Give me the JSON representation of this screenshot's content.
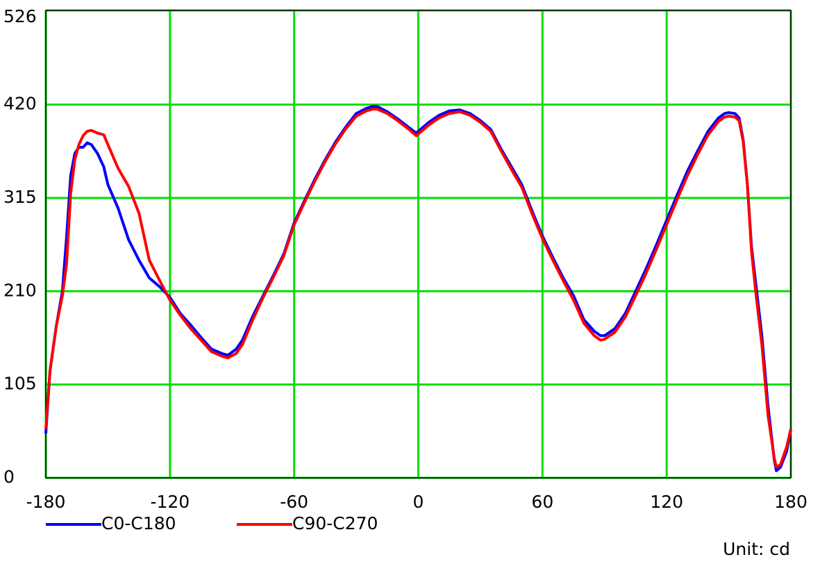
{
  "chart_data": {
    "type": "line",
    "annotation": "Unit: cd",
    "xlim": [
      -180,
      180
    ],
    "xticks": [
      -180,
      -120,
      -60,
      0,
      60,
      120,
      180
    ],
    "ylim": [
      0,
      526
    ],
    "yticks": [
      0,
      105,
      210,
      315,
      420,
      526
    ],
    "grid": true,
    "grid_color": "#00e000",
    "legend": "bottom-left",
    "x": [
      -180,
      -178,
      -175,
      -172,
      -170,
      -168,
      -166,
      -164,
      -162,
      -160,
      -158,
      -155,
      -152,
      -150,
      -145,
      -140,
      -135,
      -130,
      -125,
      -120,
      -115,
      -110,
      -105,
      -100,
      -95,
      -92,
      -88,
      -85,
      -80,
      -75,
      -70,
      -65,
      -60,
      -55,
      -50,
      -45,
      -40,
      -35,
      -30,
      -25,
      -22,
      -20,
      -15,
      -10,
      -5,
      -1,
      0,
      5,
      10,
      15,
      20,
      25,
      30,
      35,
      40,
      45,
      50,
      55,
      60,
      65,
      70,
      75,
      80,
      85,
      88,
      90,
      95,
      100,
      105,
      110,
      115,
      120,
      125,
      130,
      135,
      140,
      145,
      148,
      150,
      153,
      155,
      157,
      159,
      161,
      163,
      166,
      169,
      172,
      173,
      175,
      178,
      180
    ],
    "series": [
      {
        "name": "C0-C180",
        "color": "#0000ff",
        "values": [
          50,
          120,
          170,
          210,
          270,
          340,
          365,
          372,
          372,
          377,
          375,
          365,
          350,
          330,
          303,
          268,
          245,
          225,
          215,
          203,
          185,
          172,
          158,
          145,
          140,
          138,
          145,
          155,
          182,
          205,
          228,
          252,
          287,
          312,
          336,
          358,
          378,
          395,
          410,
          416,
          418,
          418,
          412,
          404,
          395,
          388,
          390,
          400,
          408,
          413,
          414,
          410,
          402,
          392,
          370,
          350,
          330,
          300,
          272,
          248,
          225,
          205,
          178,
          165,
          160,
          160,
          168,
          185,
          210,
          235,
          262,
          290,
          318,
          345,
          368,
          390,
          405,
          410,
          411,
          410,
          405,
          380,
          330,
          260,
          220,
          160,
          80,
          20,
          8,
          12,
          30,
          55
        ]
      },
      {
        "name": "C90-C270",
        "color": "#ff0000",
        "values": [
          55,
          120,
          170,
          205,
          240,
          320,
          358,
          375,
          385,
          390,
          391,
          388,
          386,
          375,
          348,
          328,
          298,
          245,
          222,
          200,
          183,
          168,
          155,
          142,
          137,
          135,
          140,
          150,
          178,
          203,
          226,
          250,
          285,
          310,
          334,
          356,
          376,
          393,
          407,
          413,
          415,
          415,
          410,
          402,
          393,
          385,
          387,
          397,
          405,
          410,
          412,
          408,
          400,
          390,
          368,
          347,
          327,
          297,
          269,
          245,
          222,
          200,
          174,
          160,
          155,
          156,
          164,
          181,
          205,
          230,
          257,
          285,
          313,
          340,
          364,
          386,
          401,
          406,
          407,
          406,
          402,
          378,
          330,
          255,
          210,
          150,
          70,
          22,
          12,
          15,
          35,
          55
        ]
      }
    ]
  }
}
